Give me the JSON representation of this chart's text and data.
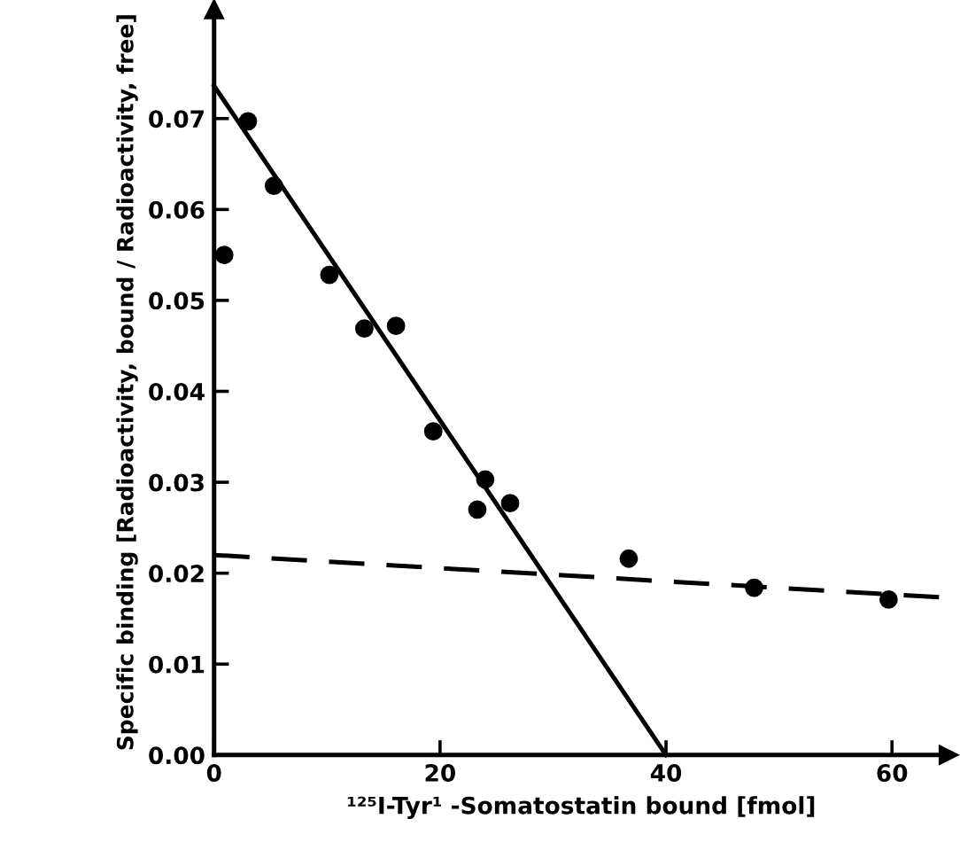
{
  "chart_data": {
    "type": "scatter",
    "xlabel": "¹²⁵I-Tyr¹ -Somatostatin bound [fmol]",
    "ylabel": "Specific binding [Radioactivity, bound / Radioactivity, free]",
    "series": [
      {
        "color": "#000000",
        "marker": "circle",
        "x": [
          0.9,
          3.0,
          5.3,
          10.2,
          13.3,
          16.1,
          19.4,
          24.0,
          23.3,
          26.2,
          36.7,
          47.8,
          59.7
        ],
        "values": [
          0.055,
          0.0697,
          0.0626,
          0.0528,
          0.0469,
          0.0472,
          0.0356,
          0.0303,
          0.027,
          0.0277,
          0.0216,
          0.0184,
          0.0171
        ]
      },
      {
        "type": "line",
        "color": "#000000",
        "line_style": "solid",
        "x": [
          0,
          40
        ],
        "values": [
          0.0736,
          0
        ]
      },
      {
        "type": "line",
        "color": "#000000",
        "line_style": "dashed",
        "x": [
          0,
          65
        ],
        "values": [
          0.022,
          0.0173
        ]
      }
    ],
    "xlim": [
      0,
      65
    ],
    "xticks": [
      0,
      20,
      40,
      60
    ],
    "ylim": [
      0,
      0.082
    ],
    "yticks": [
      {
        "value": 0,
        "label": "0.00"
      },
      {
        "value": 0.01,
        "label": "0.01"
      },
      {
        "value": 0.02,
        "label": "0.02"
      },
      {
        "value": 0.03,
        "label": "0.03"
      },
      {
        "value": 0.04,
        "label": "0.04"
      },
      {
        "value": 0.05,
        "label": "0.05"
      },
      {
        "value": 0.06,
        "label": "0.06"
      },
      {
        "value": 0.07,
        "label": "0.07"
      }
    ],
    "grid": false,
    "legend": false
  }
}
